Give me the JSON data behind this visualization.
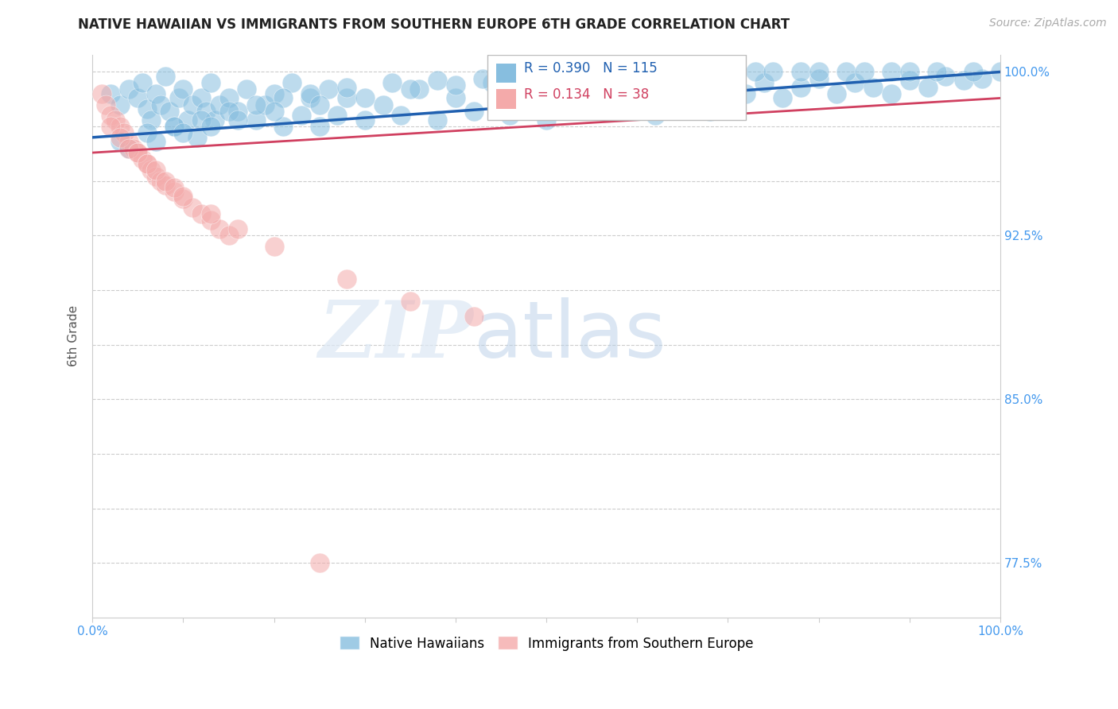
{
  "title": "NATIVE HAWAIIAN VS IMMIGRANTS FROM SOUTHERN EUROPE 6TH GRADE CORRELATION CHART",
  "source_text": "Source: ZipAtlas.com",
  "ylabel": "6th Grade",
  "xlim": [
    0.0,
    1.0
  ],
  "ylim": [
    0.75,
    1.008
  ],
  "yticks": [
    0.775,
    0.8,
    0.825,
    0.85,
    0.875,
    0.9,
    0.925,
    0.95,
    0.975,
    1.0
  ],
  "ytick_labels": [
    "77.5%",
    "",
    "",
    "85.0%",
    "",
    "",
    "92.5%",
    "",
    "",
    "100.0%"
  ],
  "xtick_vals": [
    0.0,
    0.1,
    0.2,
    0.3,
    0.4,
    0.5,
    0.6,
    0.7,
    0.8,
    0.9,
    1.0
  ],
  "xtick_labels": [
    "0.0%",
    "",
    "",
    "",
    "",
    "",
    "",
    "",
    "",
    "",
    "100.0%"
  ],
  "blue_R": 0.39,
  "blue_N": 115,
  "pink_R": 0.134,
  "pink_N": 38,
  "blue_color": "#87BEDF",
  "pink_color": "#F4AAAA",
  "blue_line_color": "#2060B0",
  "pink_line_color": "#D04060",
  "legend_label_blue": "Native Hawaiians",
  "legend_label_pink": "Immigrants from Southern Europe",
  "watermark_zip": "ZIP",
  "watermark_atlas": "atlas",
  "blue_line_x0": 0.0,
  "blue_line_x1": 1.0,
  "blue_line_y0": 0.97,
  "blue_line_y1": 1.0,
  "pink_line_x0": 0.0,
  "pink_line_x1": 1.0,
  "pink_line_y0": 0.963,
  "pink_line_y1": 0.988,
  "blue_scatter_x": [
    0.02,
    0.03,
    0.04,
    0.05,
    0.055,
    0.06,
    0.065,
    0.07,
    0.075,
    0.08,
    0.085,
    0.09,
    0.095,
    0.1,
    0.105,
    0.11,
    0.115,
    0.12,
    0.125,
    0.13,
    0.135,
    0.14,
    0.15,
    0.16,
    0.17,
    0.18,
    0.19,
    0.2,
    0.21,
    0.22,
    0.23,
    0.24,
    0.25,
    0.26,
    0.27,
    0.28,
    0.3,
    0.32,
    0.34,
    0.36,
    0.38,
    0.4,
    0.42,
    0.44,
    0.46,
    0.48,
    0.5,
    0.52,
    0.54,
    0.56,
    0.58,
    0.6,
    0.62,
    0.64,
    0.66,
    0.68,
    0.7,
    0.72,
    0.74,
    0.76,
    0.78,
    0.8,
    0.82,
    0.84,
    0.86,
    0.88,
    0.9,
    0.92,
    0.94,
    0.96,
    0.98,
    1.0,
    0.03,
    0.06,
    0.09,
    0.12,
    0.15,
    0.18,
    0.21,
    0.24,
    0.28,
    0.33,
    0.38,
    0.43,
    0.48,
    0.53,
    0.58,
    0.63,
    0.68,
    0.73,
    0.78,
    0.83,
    0.88,
    0.93,
    0.97,
    0.04,
    0.07,
    0.1,
    0.13,
    0.16,
    0.2,
    0.25,
    0.3,
    0.35,
    0.4,
    0.45,
    0.5,
    0.55,
    0.6,
    0.65,
    0.7,
    0.75,
    0.8,
    0.85,
    0.9
  ],
  "blue_scatter_y": [
    0.99,
    0.985,
    0.992,
    0.988,
    0.995,
    0.983,
    0.978,
    0.99,
    0.985,
    0.998,
    0.982,
    0.975,
    0.988,
    0.992,
    0.978,
    0.985,
    0.97,
    0.988,
    0.982,
    0.995,
    0.978,
    0.985,
    0.988,
    0.982,
    0.992,
    0.978,
    0.985,
    0.99,
    0.975,
    0.995,
    0.98,
    0.988,
    0.975,
    0.992,
    0.98,
    0.988,
    0.978,
    0.985,
    0.98,
    0.992,
    0.978,
    0.988,
    0.982,
    0.995,
    0.98,
    0.99,
    0.978,
    0.992,
    0.985,
    0.998,
    0.982,
    0.992,
    0.98,
    0.998,
    0.988,
    0.982,
    0.995,
    0.99,
    0.995,
    0.988,
    0.993,
    0.997,
    0.99,
    0.995,
    0.993,
    0.99,
    0.996,
    0.993,
    0.998,
    0.996,
    0.997,
    1.0,
    0.968,
    0.972,
    0.975,
    0.978,
    0.982,
    0.985,
    0.988,
    0.99,
    0.993,
    0.995,
    0.996,
    0.997,
    0.997,
    0.998,
    0.999,
    0.999,
    1.0,
    1.0,
    1.0,
    1.0,
    1.0,
    1.0,
    1.0,
    0.965,
    0.968,
    0.972,
    0.975,
    0.978,
    0.982,
    0.985,
    0.988,
    0.992,
    0.994,
    0.995,
    0.997,
    0.998,
    0.999,
    1.0,
    1.0,
    1.0,
    1.0,
    1.0,
    1.0
  ],
  "pink_scatter_x": [
    0.01,
    0.015,
    0.02,
    0.025,
    0.03,
    0.035,
    0.04,
    0.045,
    0.05,
    0.055,
    0.06,
    0.065,
    0.07,
    0.075,
    0.08,
    0.09,
    0.1,
    0.11,
    0.12,
    0.13,
    0.14,
    0.15,
    0.02,
    0.03,
    0.04,
    0.05,
    0.06,
    0.07,
    0.08,
    0.09,
    0.1,
    0.13,
    0.16,
    0.2,
    0.28,
    0.35,
    0.42,
    0.25
  ],
  "pink_scatter_y": [
    0.99,
    0.985,
    0.98,
    0.978,
    0.975,
    0.972,
    0.968,
    0.965,
    0.963,
    0.96,
    0.958,
    0.955,
    0.952,
    0.95,
    0.948,
    0.945,
    0.942,
    0.938,
    0.935,
    0.932,
    0.928,
    0.925,
    0.975,
    0.97,
    0.965,
    0.963,
    0.958,
    0.955,
    0.95,
    0.947,
    0.943,
    0.935,
    0.928,
    0.92,
    0.905,
    0.895,
    0.888,
    0.775
  ]
}
